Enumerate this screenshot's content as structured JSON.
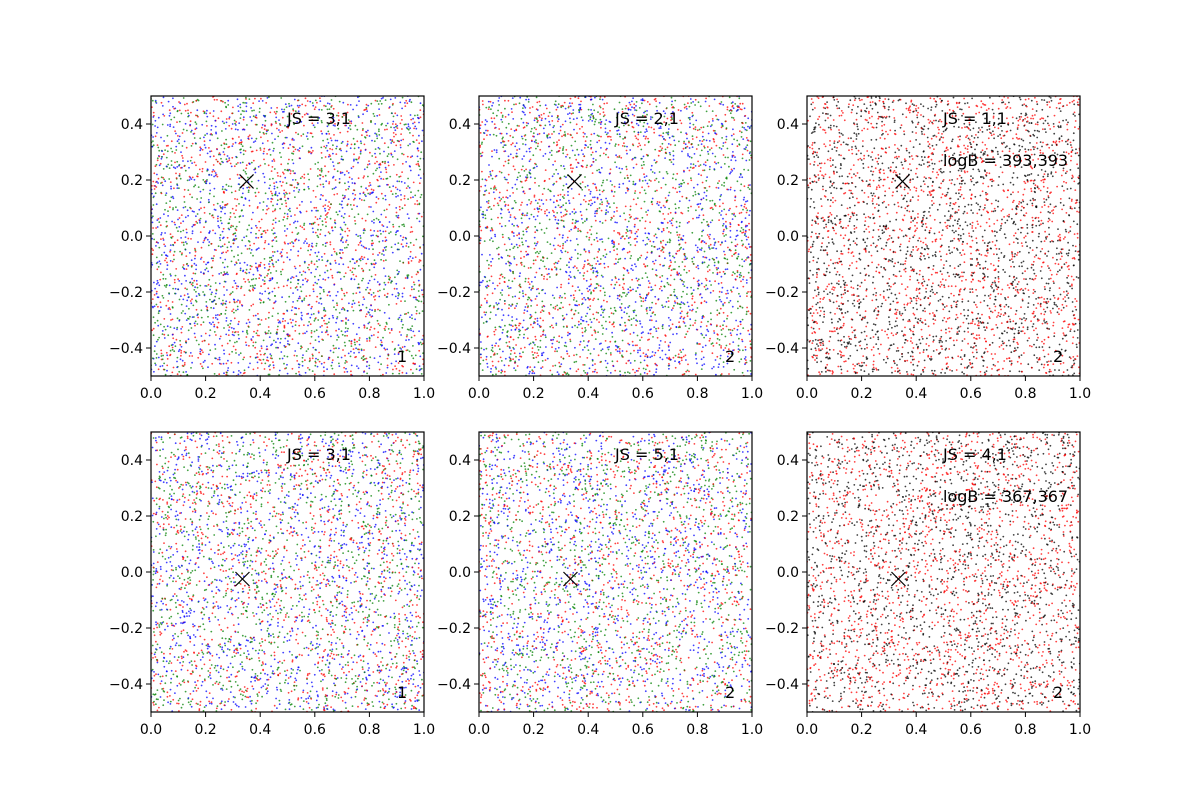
{
  "chart_data": [
    {
      "type": "scatter",
      "js_label": "JS = 3,1",
      "corner_label": "1",
      "logb_label": "",
      "xlim": [
        0.0,
        1.0
      ],
      "ylim": [
        -0.5,
        0.5
      ],
      "xticks": [
        "0.0",
        "0.2",
        "0.4",
        "0.6",
        "0.8",
        "1.0"
      ],
      "yticks": [
        "0.4",
        "0.2",
        "0.0",
        "−0.2",
        "−0.4"
      ],
      "marker": {
        "x": 0.35,
        "y": 0.195
      },
      "point_colors": [
        "#ff0000",
        "#008000",
        "#0000ff"
      ]
    },
    {
      "type": "scatter",
      "js_label": "JS = 2,1",
      "corner_label": "2",
      "logb_label": "",
      "xlim": [
        0.0,
        1.0
      ],
      "ylim": [
        -0.5,
        0.5
      ],
      "xticks": [
        "0.0",
        "0.2",
        "0.4",
        "0.6",
        "0.8",
        "1.0"
      ],
      "yticks": [
        "0.4",
        "0.2",
        "0.0",
        "−0.2",
        "−0.4"
      ],
      "marker": {
        "x": 0.35,
        "y": 0.195
      },
      "point_colors": [
        "#ff0000",
        "#008000",
        "#0000ff"
      ]
    },
    {
      "type": "scatter",
      "js_label": "JS = 1,1",
      "corner_label": "2",
      "logb_label": "logB = 393,393",
      "xlim": [
        0.0,
        1.0
      ],
      "ylim": [
        -0.5,
        0.5
      ],
      "xticks": [
        "0.0",
        "0.2",
        "0.4",
        "0.6",
        "0.8",
        "1.0"
      ],
      "yticks": [
        "0.4",
        "0.2",
        "0.0",
        "−0.2",
        "−0.4"
      ],
      "marker": {
        "x": 0.35,
        "y": 0.195
      },
      "point_colors": [
        "#ff0000",
        "#000000"
      ]
    },
    {
      "type": "scatter",
      "js_label": "JS = 3,1",
      "corner_label": "1",
      "logb_label": "",
      "xlim": [
        0.0,
        1.0
      ],
      "ylim": [
        -0.5,
        0.5
      ],
      "xticks": [
        "0.0",
        "0.2",
        "0.4",
        "0.6",
        "0.8",
        "1.0"
      ],
      "yticks": [
        "0.4",
        "0.2",
        "0.0",
        "−0.2",
        "−0.4"
      ],
      "marker": {
        "x": 0.335,
        "y": -0.025
      },
      "point_colors": [
        "#ff0000",
        "#008000",
        "#0000ff"
      ]
    },
    {
      "type": "scatter",
      "js_label": "JS = 5,1",
      "corner_label": "2",
      "logb_label": "",
      "xlim": [
        0.0,
        1.0
      ],
      "ylim": [
        -0.5,
        0.5
      ],
      "xticks": [
        "0.0",
        "0.2",
        "0.4",
        "0.6",
        "0.8",
        "1.0"
      ],
      "yticks": [
        "0.4",
        "0.2",
        "0.0",
        "−0.2",
        "−0.4"
      ],
      "marker": {
        "x": 0.335,
        "y": -0.025
      },
      "point_colors": [
        "#ff0000",
        "#008000",
        "#0000ff"
      ]
    },
    {
      "type": "scatter",
      "js_label": "JS = 4,1",
      "corner_label": "2",
      "logb_label": "logB = 367,367",
      "xlim": [
        0.0,
        1.0
      ],
      "ylim": [
        -0.5,
        0.5
      ],
      "xticks": [
        "0.0",
        "0.2",
        "0.4",
        "0.6",
        "0.8",
        "1.0"
      ],
      "yticks": [
        "0.4",
        "0.2",
        "0.0",
        "−0.2",
        "−0.4"
      ],
      "marker": {
        "x": 0.335,
        "y": -0.025
      },
      "point_colors": [
        "#ff0000",
        "#000000"
      ]
    }
  ]
}
